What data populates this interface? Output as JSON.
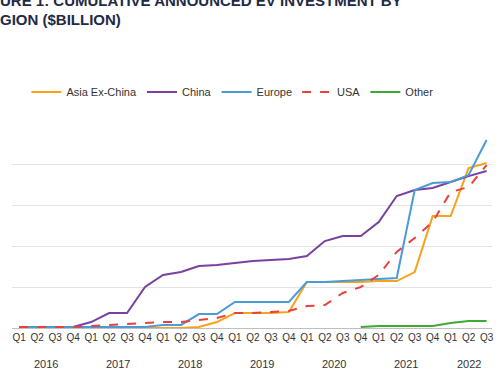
{
  "chart_data": {
    "type": "line",
    "title": "URE 1: CUMULATIVE ANNOUNCED EV INVESTMENT BY\nGION ($BILLION)",
    "categories": [
      "Q1",
      "Q2",
      "Q3",
      "Q4",
      "Q1",
      "Q2",
      "Q3",
      "Q4",
      "Q1",
      "Q2",
      "Q3",
      "Q4",
      "Q1",
      "Q2",
      "Q3",
      "Q4",
      "Q1",
      "Q2",
      "Q3",
      "Q4",
      "Q1",
      "Q2",
      "Q3",
      "Q4",
      "Q1",
      "Q2",
      "Q3"
    ],
    "category_groups": [
      "2016",
      "2016",
      "2016",
      "2016",
      "2017",
      "2017",
      "2017",
      "2017",
      "2018",
      "2018",
      "2018",
      "2018",
      "2019",
      "2019",
      "2019",
      "2019",
      "2020",
      "2020",
      "2020",
      "2020",
      "2021",
      "2021",
      "2021",
      "2021",
      "2022",
      "2022",
      "2022"
    ],
    "series": [
      {
        "name": "Asia Ex-China",
        "color": "#F7A21B",
        "line_style": "solid",
        "values": [
          0,
          0,
          0,
          0,
          0,
          0,
          0,
          0,
          0,
          0,
          0.5,
          2.9,
          7.3,
          7.3,
          7.3,
          7.8,
          22.4,
          22.4,
          22.4,
          22.4,
          22.9,
          22.9,
          27.3,
          54.6,
          54.6,
          78,
          80.5
        ]
      },
      {
        "name": "China",
        "color": "#7B3FA0",
        "line_style": "solid",
        "values": [
          0.5,
          0.5,
          0.5,
          0.5,
          2.9,
          7.3,
          7.3,
          20,
          25.9,
          27.3,
          30.2,
          30.7,
          31.7,
          32.7,
          33.2,
          33.7,
          35.1,
          42.4,
          44.9,
          44.9,
          51.7,
          64.4,
          67.3,
          68.3,
          71.2,
          74.1,
          76.6
        ]
      },
      {
        "name": "Europe",
        "color": "#4A9BD6",
        "line_style": "solid",
        "values": [
          0.5,
          0.5,
          0.5,
          0.5,
          0.5,
          0.5,
          0.5,
          0.5,
          1.5,
          1.5,
          6.8,
          6.8,
          12.7,
          12.7,
          12.7,
          12.7,
          22.4,
          22.4,
          22.9,
          23.4,
          23.9,
          24.4,
          67.3,
          70.7,
          71.2,
          74.6,
          91.7
        ]
      },
      {
        "name": "USA",
        "color": "#E8413C",
        "line_style": "dashed",
        "values": [
          0.5,
          0.5,
          0.5,
          0.5,
          1,
          1.5,
          2,
          2.4,
          2.9,
          2.9,
          3.9,
          4.9,
          7.3,
          7.3,
          7.8,
          8.3,
          10.7,
          11.2,
          17.1,
          20,
          25.9,
          37.1,
          43.9,
          51.7,
          66.3,
          68.8,
          79.5
        ]
      },
      {
        "name": "Other",
        "color": "#3DAA35",
        "line_style": "solid",
        "values": [
          null,
          null,
          null,
          null,
          null,
          null,
          null,
          null,
          null,
          null,
          null,
          null,
          null,
          null,
          null,
          null,
          null,
          null,
          null,
          0.5,
          1,
          1,
          1,
          1,
          2.4,
          3.4,
          3.4
        ]
      }
    ],
    "ylim": [
      0,
      100
    ],
    "yticks": [
      0,
      20,
      40,
      60,
      80,
      100
    ],
    "grid": true,
    "legend": "top",
    "tick_labels": "x"
  }
}
